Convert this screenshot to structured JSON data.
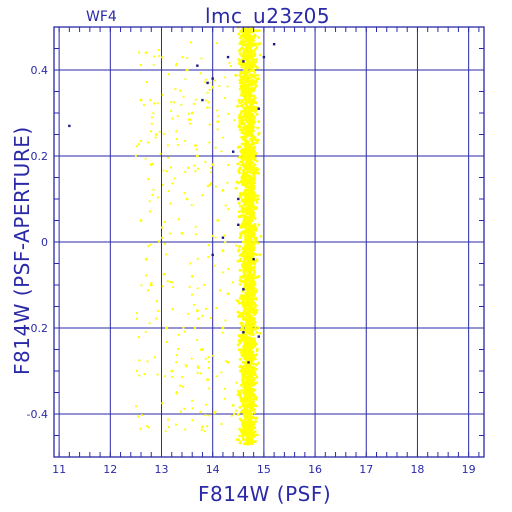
{
  "header": {
    "title": "lmc_u23z05",
    "panel": "WF4"
  },
  "colors": {
    "axis": "#2a2aa8",
    "grid": "#2a2aa8",
    "points_main": "#ffff00",
    "points_highlight": "#1a1a8a",
    "background": "#ffffff"
  },
  "chart_data": {
    "type": "scatter",
    "title": "lmc_u23z05",
    "panel_label": "WF4",
    "xlabel": "F814W (PSF)",
    "ylabel": "F814W (PSF-APERTURE)",
    "xlim": [
      10.9,
      19.3
    ],
    "ylim": [
      -0.5,
      0.5
    ],
    "x_ticks": [
      11,
      12,
      13,
      14,
      15,
      16,
      17,
      18,
      19
    ],
    "x_tick_labels": [
      "11",
      "12",
      "13",
      "14",
      "15",
      "16",
      "17",
      "18",
      "19"
    ],
    "y_ticks": [
      -0.4,
      -0.2,
      0,
      0.2,
      0.4
    ],
    "y_tick_labels": [
      "-0.4",
      "-0.2",
      "0",
      "0.2",
      "0.4"
    ],
    "grid": true,
    "legend": "none",
    "series": [
      {
        "color": "#ffff00",
        "description_points": [
          [
            12.7,
            0.44
          ],
          [
            12.6,
            0.33
          ],
          [
            12.9,
            0.25
          ],
          [
            12.8,
            0.18
          ],
          [
            12.6,
            0.05
          ],
          [
            12.7,
            -0.04
          ],
          [
            12.8,
            -0.1
          ],
          [
            13.1,
            -0.2
          ],
          [
            13.2,
            -0.3
          ],
          [
            13.3,
            -0.35
          ],
          [
            13.5,
            0.4
          ],
          [
            13.6,
            0.3
          ],
          [
            13.7,
            0.2
          ],
          [
            13.5,
            0.1
          ],
          [
            13.4,
            0.02
          ],
          [
            13.6,
            -0.08
          ],
          [
            13.7,
            -0.16
          ],
          [
            13.8,
            -0.25
          ],
          [
            13.9,
            -0.32
          ],
          [
            13.8,
            -0.43
          ],
          [
            14.0,
            0.36
          ],
          [
            14.1,
            0.28
          ],
          [
            14.0,
            0.18
          ],
          [
            14.2,
            0.12
          ],
          [
            14.1,
            0.05
          ],
          [
            14.2,
            -0.02
          ],
          [
            14.3,
            -0.12
          ],
          [
            14.2,
            -0.2
          ],
          [
            14.3,
            -0.28
          ],
          [
            14.4,
            -0.38
          ],
          [
            14.6,
            0.48
          ],
          [
            14.7,
            0.42
          ],
          [
            14.6,
            0.35
          ],
          [
            14.7,
            0.3
          ],
          [
            14.8,
            0.24
          ],
          [
            14.6,
            0.18
          ],
          [
            14.7,
            0.12
          ],
          [
            14.8,
            0.06
          ],
          [
            14.6,
            0.0
          ],
          [
            14.7,
            -0.06
          ],
          [
            14.8,
            -0.12
          ],
          [
            14.6,
            -0.18
          ],
          [
            14.7,
            -0.24
          ],
          [
            14.8,
            -0.3
          ],
          [
            14.7,
            -0.36
          ],
          [
            14.7,
            -0.42
          ],
          [
            14.6,
            -0.46
          ],
          [
            14.9,
            0.46
          ],
          [
            14.9,
            0.38
          ],
          [
            14.9,
            0.28
          ],
          [
            14.9,
            0.16
          ],
          [
            14.9,
            0.04
          ],
          [
            14.9,
            -0.08
          ],
          [
            14.9,
            -0.2
          ],
          [
            14.5,
            0.22
          ]
        ]
      },
      {
        "color": "#1a1a8a",
        "points": [
          [
            11.2,
            0.27
          ],
          [
            13.7,
            0.41
          ],
          [
            13.8,
            0.33
          ],
          [
            13.9,
            0.37
          ],
          [
            14.0,
            0.38
          ],
          [
            14.3,
            0.43
          ],
          [
            14.6,
            0.42
          ],
          [
            14.9,
            0.31
          ],
          [
            15.0,
            0.43
          ],
          [
            15.2,
            0.46
          ],
          [
            14.4,
            0.21
          ],
          [
            14.5,
            0.1
          ],
          [
            14.5,
            0.04
          ],
          [
            14.0,
            -0.03
          ],
          [
            14.6,
            -0.11
          ],
          [
            14.8,
            -0.04
          ],
          [
            14.9,
            -0.22
          ],
          [
            14.6,
            -0.21
          ],
          [
            14.7,
            -0.28
          ],
          [
            14.2,
            0.01
          ]
        ]
      }
    ]
  }
}
